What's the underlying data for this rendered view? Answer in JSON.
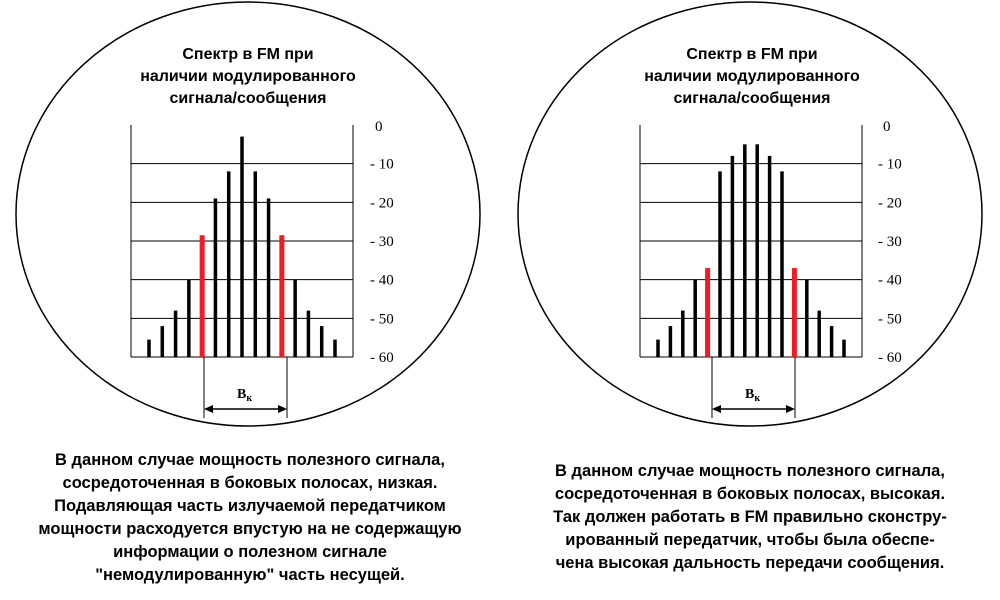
{
  "panels": [
    {
      "title_lines": [
        "Спектр в FM при",
        "наличии модулированного",
        "сигнала/сообщения"
      ],
      "y_ticks": [
        "0",
        "- 10",
        "- 20",
        "- 30",
        "- 40",
        "- 50",
        "- 60"
      ],
      "bandwidth_label": "B",
      "bandwidth_sub": "к",
      "chart_data": {
        "type": "bar",
        "ylim": [
          -60,
          0
        ],
        "bars_db": [
          -55.5,
          -52,
          -48,
          -40,
          -28.5,
          -19,
          -12,
          -3,
          -12,
          -19,
          -28.5,
          -40,
          -48,
          -52,
          -55.5
        ],
        "highlight_color": "#ee1c24",
        "bar_color": "#000000",
        "highlight_indices": [
          4,
          10
        ]
      },
      "caption_lines": [
        "В данном случае мощность полезного сигнала,",
        "сосредоточенная в боковых полосах, низкая.",
        "Подавляющая часть излучаемой передатчиком",
        "мощности расходуется впустую на не содержащую",
        "информации о полезном сигнале",
        "\"немодулированную\" часть несущей."
      ]
    },
    {
      "title_lines": [
        "Спектр в FM при",
        "наличии модулированного",
        "сигнала/сообщения"
      ],
      "y_ticks": [
        "0",
        "- 10",
        "- 20",
        "- 30",
        "- 40",
        "- 50",
        "- 60"
      ],
      "bandwidth_label": "B",
      "bandwidth_sub": "к",
      "chart_data": {
        "type": "bar",
        "ylim": [
          -60,
          0
        ],
        "bars_db": [
          -55.5,
          -52,
          -48,
          -40,
          -37,
          -12,
          -8,
          -5,
          -5,
          -8,
          -12,
          -37,
          -40,
          -48,
          -52,
          -55.5
        ],
        "highlight_color": "#ee1c24",
        "bar_color": "#000000",
        "highlight_indices": [
          4,
          11
        ]
      },
      "caption_lines": [
        "В данном случае мощность полезного сигнала,",
        "сосредоточенная в боковых полосах, высокая.",
        "Так должен работать в FM правильно сконстру-",
        "ированный передатчик, чтобы была обеспе-",
        "чена высокая дальность передачи сообщения."
      ]
    }
  ]
}
